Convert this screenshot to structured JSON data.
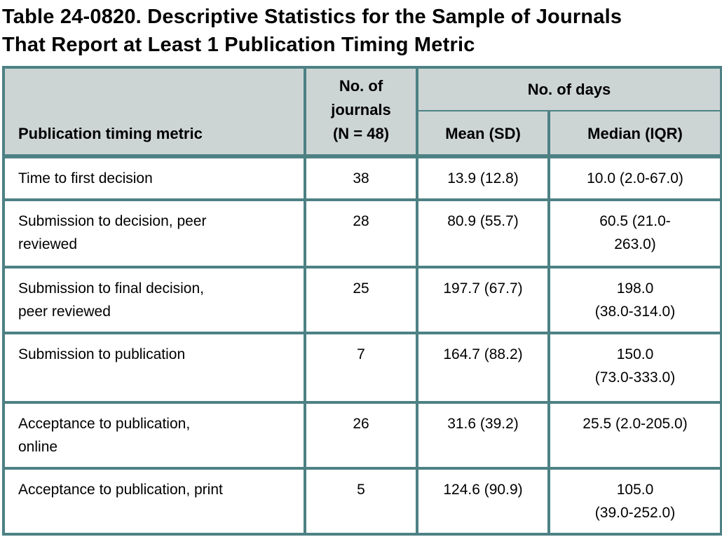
{
  "title": "Table 24-0820. Descriptive Statistics for the Sample of Journals\nThat Report at Least 1 Publication Timing Metric",
  "table": {
    "headers": {
      "metric": "Publication timing metric",
      "n_journals": "No. of\njournals\n(N = 48)",
      "days_group": "No. of days",
      "mean": "Mean (SD)",
      "median": "Median (IQR)"
    },
    "rows": [
      {
        "metric": "Time to first decision",
        "n": "38",
        "mean_sd": "13.9 (12.8)",
        "median_iqr": "10.0 (2.0-67.0)"
      },
      {
        "metric": "Submission to decision, peer\nreviewed",
        "n": "28",
        "mean_sd": "80.9 (55.7)",
        "median_iqr": "60.5 (21.0-\n263.0)"
      },
      {
        "metric": "Submission to final decision,\npeer reviewed",
        "n": "25",
        "mean_sd": "197.7 (67.7)",
        "median_iqr": "198.0\n(38.0-314.0)"
      },
      {
        "metric": "Submission to publication",
        "n": "7",
        "mean_sd": "164.7 (88.2)",
        "median_iqr": "150.0\n(73.0-333.0)"
      },
      {
        "metric": "Acceptance to publication,\nonline",
        "n": "26",
        "mean_sd": "31.6 (39.2)",
        "median_iqr": "25.5 (2.0-205.0)"
      },
      {
        "metric": "Acceptance to publication, print",
        "n": "5",
        "mean_sd": "124.6 (90.9)",
        "median_iqr": "105.0\n(39.0-252.0)"
      }
    ]
  },
  "colors": {
    "border": "#4d8184",
    "header_background": "#cdd5d4",
    "text": "#000000",
    "page_background": "#ffffff"
  }
}
